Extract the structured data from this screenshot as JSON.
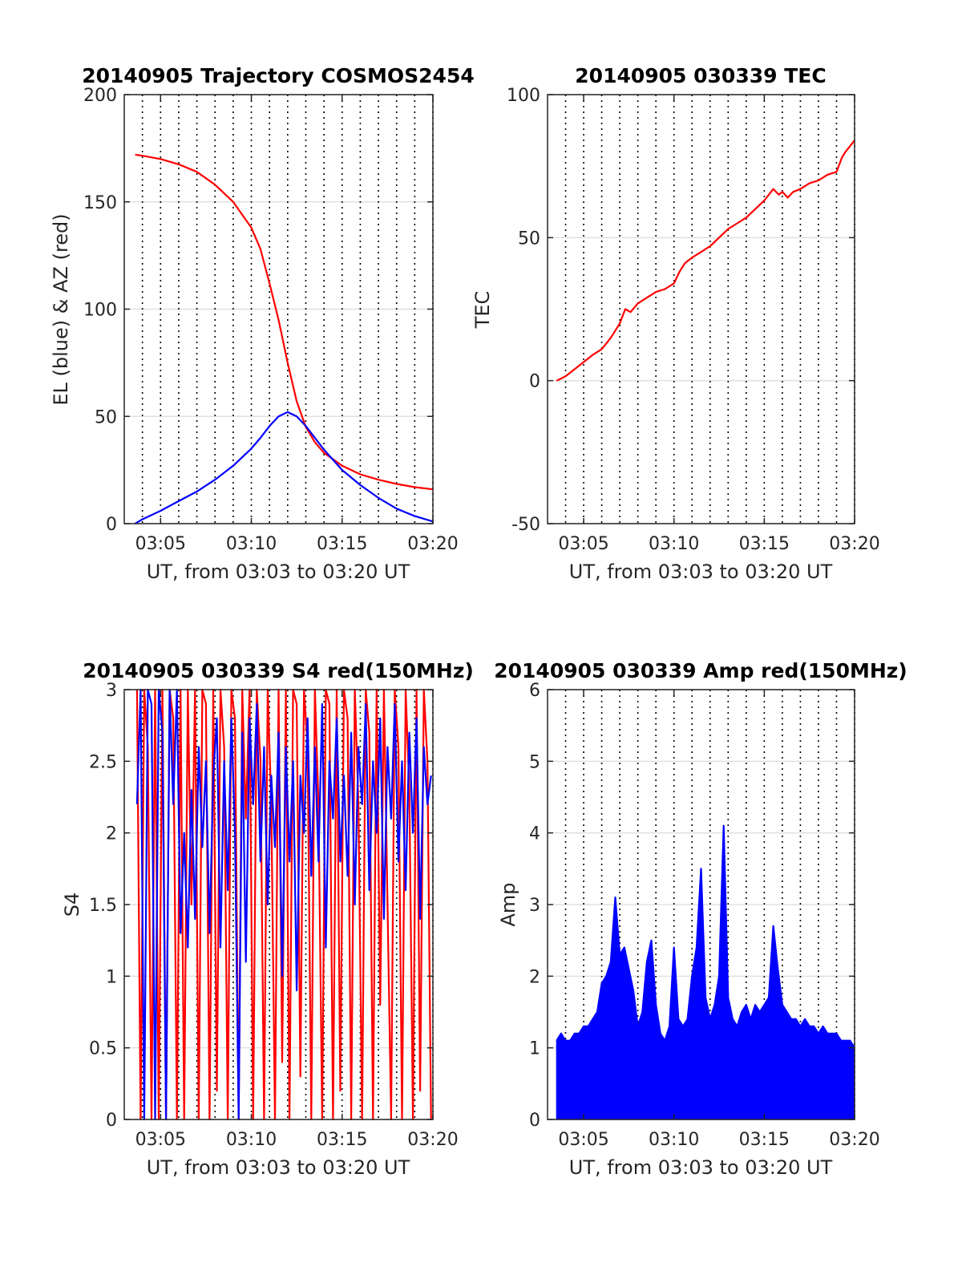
{
  "figure": {
    "background": "#ffffff",
    "frame_color": "#262626",
    "grid_color": "#e0e0e0",
    "vline_color": "#000000"
  },
  "chart_data": [
    {
      "id": "trajectory",
      "type": "line",
      "title": "20140905 Trajectory COSMOS2454",
      "xlabel": "UT, from 03:03 to 03:20 UT",
      "ylabel": "EL (blue) & AZ (red)",
      "xlim": [
        3.0,
        20.0
      ],
      "ylim": [
        0,
        200
      ],
      "xticks": [
        5,
        10,
        15,
        20
      ],
      "xtick_labels": [
        "03:05",
        "03:10",
        "03:15",
        "03:20"
      ],
      "yticks": [
        0,
        50,
        100,
        150,
        200
      ],
      "ytick_labels": [
        "0",
        "50",
        "100",
        "150",
        "200"
      ],
      "vlines": [
        4,
        5,
        6,
        7,
        8,
        9,
        10,
        11,
        12,
        13,
        14,
        15,
        16,
        17,
        18,
        19,
        20
      ],
      "grid": "horizontal",
      "series": [
        {
          "color": "#ff0000",
          "x": [
            3.6,
            4.0,
            5.0,
            6.0,
            7.0,
            8.0,
            9.0,
            10.0,
            10.5,
            11.0,
            11.5,
            12.0,
            12.5,
            13.0,
            13.5,
            14.0,
            15.0,
            16.0,
            17.0,
            18.0,
            19.0,
            20.0
          ],
          "y": [
            172,
            171.5,
            170,
            167.5,
            164,
            158,
            150,
            138,
            128,
            112,
            95,
            75,
            57,
            45,
            38,
            33,
            27,
            23,
            20.5,
            18.5,
            17,
            16
          ]
        },
        {
          "color": "#0000ff",
          "x": [
            3.6,
            4.0,
            5.0,
            6.0,
            7.0,
            8.0,
            9.0,
            10.0,
            10.5,
            11.0,
            11.5,
            12.0,
            12.5,
            13.0,
            13.5,
            14.0,
            15.0,
            16.0,
            17.0,
            18.0,
            19.0,
            20.0
          ],
          "y": [
            0,
            2,
            6,
            10.5,
            15,
            20.5,
            27,
            35,
            40,
            45.5,
            50,
            52,
            50,
            45.5,
            40,
            34.5,
            25,
            18,
            12,
            7,
            3.5,
            1
          ]
        }
      ]
    },
    {
      "id": "tec",
      "type": "line",
      "title": "20140905 030339 TEC",
      "xlabel": "UT, from 03:03 to 03:20 UT",
      "ylabel": "TEC",
      "xlim": [
        3.0,
        20.0
      ],
      "ylim": [
        -50,
        100
      ],
      "xticks": [
        5,
        10,
        15,
        20
      ],
      "xtick_labels": [
        "03:05",
        "03:10",
        "03:15",
        "03:20"
      ],
      "yticks": [
        -50,
        0,
        50,
        100
      ],
      "ytick_labels": [
        "-50",
        "0",
        "50",
        "100"
      ],
      "vlines": [
        4,
        5,
        6,
        7,
        8,
        9,
        10,
        11,
        12,
        13,
        14,
        15,
        16,
        17,
        18,
        19,
        20
      ],
      "grid": "horizontal",
      "series": [
        {
          "color": "#ff0000",
          "x": [
            3.5,
            4.0,
            4.5,
            5.0,
            5.5,
            6.0,
            6.5,
            7.0,
            7.3,
            7.6,
            8.0,
            8.5,
            9.0,
            9.5,
            10.0,
            10.3,
            10.6,
            11.0,
            11.5,
            12.0,
            12.5,
            13.0,
            13.5,
            14.0,
            14.5,
            15.0,
            15.5,
            15.8,
            16.0,
            16.3,
            16.6,
            17.0,
            17.5,
            18.0,
            18.5,
            19.0,
            19.3,
            19.5,
            20.0
          ],
          "y": [
            0,
            1.5,
            4,
            6.5,
            9,
            11,
            15,
            20,
            25,
            24,
            27,
            29,
            31,
            32,
            34,
            38,
            41,
            43,
            45,
            47,
            50,
            53,
            55,
            57,
            60,
            63,
            67,
            65,
            66,
            64,
            66,
            67,
            69,
            70,
            72,
            73,
            78,
            80,
            84
          ]
        }
      ]
    },
    {
      "id": "s4",
      "type": "line",
      "title": "20140905 030339 S4 red(150MHz)",
      "xlabel": "UT, from 03:03 to 03:20 UT",
      "ylabel": "S4",
      "xlim": [
        3.0,
        20.0
      ],
      "ylim": [
        0,
        3
      ],
      "xticks": [
        5,
        10,
        15,
        20
      ],
      "xtick_labels": [
        "03:05",
        "03:10",
        "03:15",
        "03:20"
      ],
      "yticks": [
        0,
        0.5,
        1,
        1.5,
        2,
        2.5,
        3
      ],
      "ytick_labels": [
        "0",
        "0.5",
        "1",
        "1.5",
        "2",
        "2.5",
        "3"
      ],
      "vlines": [
        4,
        5,
        6,
        7,
        8,
        9,
        10,
        11,
        12,
        13,
        14,
        15,
        16,
        17,
        18,
        19,
        20
      ],
      "grid": "horizontal",
      "series": [
        {
          "color": "#ff0000",
          "x": [
            3.7,
            3.9,
            4.1,
            4.3,
            4.5,
            4.7,
            4.9,
            5.1,
            5.3,
            5.5,
            5.7,
            5.9,
            6.1,
            6.3,
            6.5,
            6.7,
            6.9,
            7.1,
            7.3,
            7.5,
            7.7,
            7.9,
            8.1,
            8.3,
            8.5,
            8.7,
            8.9,
            9.1,
            9.3,
            9.5,
            9.7,
            9.9,
            10.1,
            10.3,
            10.5,
            10.7,
            10.9,
            11.1,
            11.3,
            11.5,
            11.7,
            11.9,
            12.1,
            12.3,
            12.5,
            12.7,
            12.9,
            13.1,
            13.3,
            13.5,
            13.7,
            13.9,
            14.1,
            14.3,
            14.5,
            14.7,
            14.9,
            15.1,
            15.3,
            15.5,
            15.7,
            15.9,
            16.1,
            16.3,
            16.5,
            16.7,
            16.9,
            17.1,
            17.3,
            17.5,
            17.7,
            17.9,
            18.1,
            18.3,
            18.5,
            18.7,
            18.9,
            19.1,
            19.3,
            19.5,
            19.7,
            19.9
          ],
          "y": [
            3,
            0,
            3,
            2.6,
            0,
            3,
            0,
            3,
            0,
            3,
            2.8,
            0,
            3,
            0,
            3,
            1.5,
            3,
            0,
            3,
            2.9,
            0,
            3,
            0.2,
            3,
            2.6,
            0,
            3,
            2.8,
            0,
            3,
            2.1,
            3,
            0,
            3,
            2.5,
            0,
            3,
            2.2,
            0,
            3,
            0.4,
            3,
            0,
            3,
            2.9,
            0.3,
            3,
            2.6,
            0,
            3,
            2.2,
            0,
            3,
            2.9,
            0,
            3,
            0.2,
            3,
            2.8,
            0,
            3,
            2.2,
            0,
            3,
            2.7,
            0,
            3,
            0.8,
            3,
            1.5,
            0,
            3,
            2.6,
            0,
            3,
            2.3,
            0,
            3,
            0.2,
            3,
            2.5,
            0
          ]
        },
        {
          "color": "#0000ff",
          "x": [
            3.7,
            3.9,
            4.1,
            4.3,
            4.5,
            4.7,
            4.9,
            5.1,
            5.3,
            5.5,
            5.7,
            5.9,
            6.1,
            6.3,
            6.5,
            6.7,
            6.9,
            7.1,
            7.3,
            7.5,
            7.7,
            7.9,
            8.1,
            8.3,
            8.5,
            8.7,
            8.9,
            9.1,
            9.3,
            9.5,
            9.7,
            9.9,
            10.1,
            10.3,
            10.5,
            10.7,
            10.9,
            11.1,
            11.3,
            11.5,
            11.7,
            11.9,
            12.1,
            12.3,
            12.5,
            12.7,
            12.9,
            13.1,
            13.3,
            13.5,
            13.7,
            13.9,
            14.1,
            14.3,
            14.5,
            14.7,
            14.9,
            15.1,
            15.3,
            15.5,
            15.7,
            15.9,
            16.1,
            16.3,
            16.5,
            16.7,
            16.9,
            17.1,
            17.3,
            17.5,
            17.7,
            17.9,
            18.1,
            18.3,
            18.5,
            18.7,
            18.9,
            19.1,
            19.3,
            19.5,
            19.7,
            19.9
          ],
          "y": [
            2.2,
            3,
            0,
            3,
            2.9,
            0,
            3,
            2.7,
            0,
            3,
            2.2,
            3,
            1.3,
            2.0,
            1.2,
            2.3,
            1.4,
            2.6,
            1.9,
            2.5,
            1.3,
            2.4,
            2.8,
            1.2,
            2.5,
            1.6,
            2.8,
            2.0,
            0,
            2.7,
            1.1,
            2.8,
            2.2,
            2.9,
            1.8,
            2.6,
            1.5,
            2.4,
            1.9,
            2.7,
            1.0,
            2.6,
            1.8,
            2.5,
            0.9,
            2.4,
            2.0,
            2.8,
            1.7,
            2.6,
            1.8,
            2.9,
            1.2,
            2.5,
            2.1,
            2.8,
            1.8,
            2.4,
            1.7,
            2.7,
            1.5,
            2.6,
            2.2,
            2.9,
            1.6,
            2.5,
            2.0,
            2.8,
            1.4,
            2.6,
            2.1,
            2.9,
            1.8,
            2.5,
            1.6,
            2.7,
            2.0,
            2.8,
            1.4,
            2.6,
            2.2,
            2.4
          ]
        }
      ]
    },
    {
      "id": "amp",
      "type": "line",
      "title": "20140905 030339 Amp red(150MHz)",
      "xlabel": "UT, from 03:03 to 03:20 UT",
      "ylabel": "Amp",
      "xlim": [
        3.0,
        20.0
      ],
      "ylim": [
        0,
        6
      ],
      "xticks": [
        5,
        10,
        15,
        20
      ],
      "xtick_labels": [
        "03:05",
        "03:10",
        "03:15",
        "03:20"
      ],
      "yticks": [
        0,
        1,
        2,
        3,
        4,
        5,
        6
      ],
      "ytick_labels": [
        "0",
        "1",
        "2",
        "3",
        "4",
        "5",
        "6"
      ],
      "vlines": [
        4,
        5,
        6,
        7,
        8,
        9,
        10,
        11,
        12,
        13,
        14,
        15,
        16,
        17,
        18,
        19,
        20
      ],
      "grid": "horizontal",
      "series": [
        {
          "color": "#0000ff",
          "x": [
            3.5,
            3.75,
            4.0,
            4.25,
            4.5,
            4.75,
            5.0,
            5.25,
            5.5,
            5.75,
            6.0,
            6.25,
            6.5,
            6.75,
            7.0,
            7.25,
            7.5,
            7.75,
            8.0,
            8.25,
            8.5,
            8.75,
            9.0,
            9.25,
            9.5,
            9.75,
            10.0,
            10.25,
            10.5,
            10.75,
            11.0,
            11.25,
            11.5,
            11.75,
            12.0,
            12.25,
            12.5,
            12.75,
            13.0,
            13.25,
            13.5,
            13.75,
            14.0,
            14.25,
            14.5,
            14.75,
            15.0,
            15.25,
            15.5,
            15.75,
            16.0,
            16.25,
            16.5,
            16.75,
            17.0,
            17.25,
            17.5,
            17.75,
            18.0,
            18.25,
            18.5,
            18.75,
            19.0,
            19.25,
            19.5,
            19.75,
            20.0
          ],
          "y": [
            1.1,
            1.2,
            1.1,
            1.1,
            1.2,
            1.2,
            1.3,
            1.3,
            1.4,
            1.5,
            1.9,
            2.0,
            2.2,
            3.1,
            2.3,
            2.4,
            2.1,
            1.8,
            1.3,
            1.5,
            2.2,
            2.5,
            1.6,
            1.2,
            1.1,
            1.3,
            2.4,
            1.4,
            1.3,
            1.4,
            2.0,
            2.4,
            3.5,
            1.7,
            1.4,
            1.6,
            2.0,
            4.1,
            1.7,
            1.4,
            1.3,
            1.5,
            1.6,
            1.4,
            1.6,
            1.5,
            1.6,
            1.7,
            2.7,
            2.1,
            1.6,
            1.5,
            1.4,
            1.4,
            1.3,
            1.4,
            1.3,
            1.3,
            1.2,
            1.3,
            1.2,
            1.2,
            1.2,
            1.1,
            1.1,
            1.1,
            1.0
          ],
          "floor": 0
        }
      ]
    }
  ]
}
